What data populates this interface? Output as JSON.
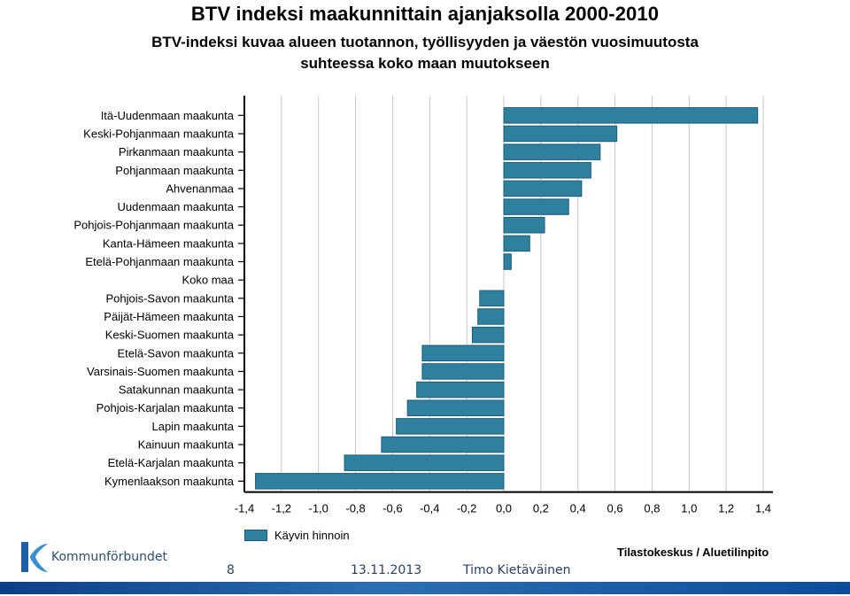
{
  "chart_data": {
    "type": "bar",
    "orientation": "horizontal",
    "title": "BTV indeksi maakunnittain ajanjaksolla 2000-2010",
    "subtitle_lines": [
      "BTV-indeksi kuvaa alueen tuotannon, työllisyyden ja väestön vuosimuutosta",
      "suhteessa koko maan muutokseen"
    ],
    "categories": [
      "Itä-Uudenmaan maakunta",
      "Keski-Pohjanmaan maakunta",
      "Pirkanmaan maakunta",
      "Pohjanmaan maakunta",
      "Ahvenanmaa",
      "Uudenmaan maakunta",
      "Pohjois-Pohjanmaan maakunta",
      "Kanta-Hämeen maakunta",
      "Etelä-Pohjanmaan maakunta",
      "Koko maa",
      "Pohjois-Savon maakunta",
      "Päijät-Hämeen maakunta",
      "Keski-Suomen maakunta",
      "Etelä-Savon maakunta",
      "Varsinais-Suomen maakunta",
      "Satakunnan maakunta",
      "Pohjois-Karjalan maakunta",
      "Lapin maakunta",
      "Kainuun maakunta",
      "Etelä-Karjalan maakunta",
      "Kymenlaakson maakunta"
    ],
    "series": [
      {
        "name": "Käyvin hinnoin",
        "color": "#2f7f9f",
        "values": [
          1.37,
          0.61,
          0.52,
          0.47,
          0.42,
          0.35,
          0.22,
          0.14,
          0.04,
          0.0,
          -0.13,
          -0.14,
          -0.17,
          -0.44,
          -0.44,
          -0.47,
          -0.52,
          -0.58,
          -0.66,
          -0.86,
          -1.34
        ]
      }
    ],
    "xticks": [
      "-1,4",
      "-1,2",
      "-1,0",
      "-0,8",
      "-0,6",
      "-0,4",
      "-0,2",
      "0,0",
      "0,2",
      "0,4",
      "0,6",
      "0,8",
      "1,0",
      "1,2",
      "1,4"
    ],
    "xlim": [
      -1.4,
      1.4
    ],
    "grid": true,
    "legend_position": "bottom-left"
  },
  "source": "Tilastokeskus / Aluetilinpito",
  "logo_text": "Kommunförbundet",
  "footer": {
    "page_number": "8",
    "date": "13.11.2013",
    "author": "Timo Kietäväinen"
  }
}
